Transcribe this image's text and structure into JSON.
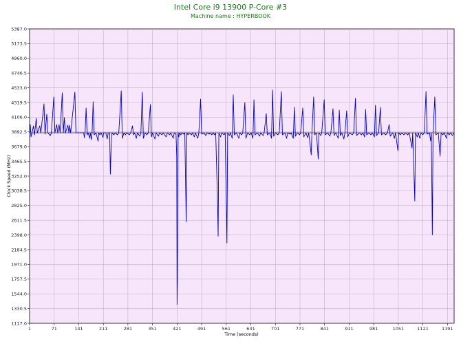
{
  "chart_data": {
    "type": "line",
    "title": "Intel Core i9 13900 P-Core #3",
    "subtitle": "Machine name : HYPERBOOK",
    "xlabel": "Time (seconds)",
    "ylabel": "Clock Speed (MHz)",
    "xlim": [
      1,
      1210
    ],
    "ylim": [
      1117.0,
      5387.0
    ],
    "x_ticks": [
      1,
      71,
      141,
      211,
      281,
      351,
      421,
      491,
      561,
      631,
      701,
      771,
      841,
      911,
      981,
      1051,
      1121,
      1191
    ],
    "y_ticks": [
      "1117.0",
      "1330.5",
      "1544.0",
      "1757.5",
      "1971.0",
      "2184.5",
      "2398.0",
      "2611.5",
      "2825.0",
      "3038.5",
      "3252.0",
      "3465.5",
      "3679.0",
      "3892.5",
      "4106.0",
      "4319.5",
      "4533.0",
      "4746.5",
      "4960.0",
      "5173.5",
      "5387.0"
    ],
    "grid": true,
    "legend": "none",
    "colors": {
      "line": "#0000cc",
      "plot_bg": "#f7e6fb",
      "grid": "#b9a6bf",
      "title": "#1a7a1a"
    },
    "series": [
      {
        "baseline": 3880,
        "points": [
          [
            1,
            3880
          ],
          [
            3,
            4000
          ],
          [
            5,
            3820
          ],
          [
            8,
            3880
          ],
          [
            12,
            3980
          ],
          [
            15,
            3850
          ],
          [
            20,
            4090
          ],
          [
            23,
            3880
          ],
          [
            30,
            3980
          ],
          [
            33,
            3880
          ],
          [
            42,
            4300
          ],
          [
            45,
            3860
          ],
          [
            50,
            4150
          ],
          [
            53,
            3880
          ],
          [
            60,
            3840
          ],
          [
            63,
            3880
          ],
          [
            70,
            4400
          ],
          [
            73,
            3880
          ],
          [
            78,
            4000
          ],
          [
            81,
            3880
          ],
          [
            85,
            4000
          ],
          [
            88,
            3880
          ],
          [
            94,
            4460
          ],
          [
            97,
            3880
          ],
          [
            100,
            4100
          ],
          [
            103,
            3880
          ],
          [
            110,
            3990
          ],
          [
            113,
            3880
          ],
          [
            115,
            3990
          ],
          [
            118,
            3880
          ],
          [
            130,
            4470
          ],
          [
            133,
            3880
          ],
          [
            141,
            3880
          ],
          [
            155,
            3880
          ],
          [
            157,
            3810
          ],
          [
            159,
            3880
          ],
          [
            162,
            4240
          ],
          [
            165,
            3850
          ],
          [
            168,
            3880
          ],
          [
            172,
            3800
          ],
          [
            174,
            3880
          ],
          [
            177,
            3780
          ],
          [
            179,
            3880
          ],
          [
            182,
            4330
          ],
          [
            185,
            3850
          ],
          [
            190,
            3880
          ],
          [
            196,
            3760
          ],
          [
            198,
            3880
          ],
          [
            201,
            3850
          ],
          [
            205,
            3880
          ],
          [
            210,
            3810
          ],
          [
            212,
            3880
          ],
          [
            215,
            3880
          ],
          [
            218,
            3880
          ],
          [
            222,
            3790
          ],
          [
            225,
            3880
          ],
          [
            229,
            3880
          ],
          [
            231,
            3280
          ],
          [
            234,
            3800
          ],
          [
            236,
            3880
          ],
          [
            241,
            3850
          ],
          [
            245,
            3880
          ],
          [
            251,
            3850
          ],
          [
            255,
            3880
          ],
          [
            262,
            4490
          ],
          [
            265,
            3800
          ],
          [
            270,
            3880
          ],
          [
            274,
            3850
          ],
          [
            278,
            3880
          ],
          [
            285,
            3850
          ],
          [
            289,
            3880
          ],
          [
            294,
            3980
          ],
          [
            297,
            3850
          ],
          [
            300,
            3880
          ],
          [
            305,
            3800
          ],
          [
            308,
            3880
          ],
          [
            315,
            3830
          ],
          [
            318,
            3880
          ],
          [
            322,
            4470
          ],
          [
            325,
            3800
          ],
          [
            330,
            3880
          ],
          [
            335,
            3850
          ],
          [
            339,
            3880
          ],
          [
            345,
            4290
          ],
          [
            348,
            3820
          ],
          [
            351,
            3880
          ],
          [
            358,
            3790
          ],
          [
            361,
            3880
          ],
          [
            368,
            3830
          ],
          [
            371,
            3880
          ],
          [
            378,
            3850
          ],
          [
            381,
            3880
          ],
          [
            390,
            3820
          ],
          [
            393,
            3880
          ],
          [
            400,
            3850
          ],
          [
            403,
            3880
          ],
          [
            410,
            3800
          ],
          [
            413,
            3880
          ],
          [
            418,
            3860
          ],
          [
            420,
            3540
          ],
          [
            421,
            1390
          ],
          [
            422,
            1730
          ],
          [
            424,
            3880
          ],
          [
            426,
            3820
          ],
          [
            428,
            3880
          ],
          [
            432,
            3850
          ],
          [
            435,
            3880
          ],
          [
            440,
            3860
          ],
          [
            443,
            3880
          ],
          [
            447,
            2590
          ],
          [
            449,
            3880
          ],
          [
            452,
            3850
          ],
          [
            455,
            3880
          ],
          [
            462,
            3850
          ],
          [
            465,
            3880
          ],
          [
            470,
            3820
          ],
          [
            473,
            3880
          ],
          [
            480,
            3800
          ],
          [
            483,
            3880
          ],
          [
            488,
            4370
          ],
          [
            491,
            3860
          ],
          [
            497,
            3880
          ],
          [
            503,
            3840
          ],
          [
            506,
            3880
          ],
          [
            512,
            3860
          ],
          [
            515,
            3880
          ],
          [
            520,
            3850
          ],
          [
            523,
            3880
          ],
          [
            528,
            3850
          ],
          [
            531,
            3880
          ],
          [
            536,
            2930
          ],
          [
            538,
            2380
          ],
          [
            540,
            3880
          ],
          [
            545,
            3820
          ],
          [
            548,
            3880
          ],
          [
            555,
            3850
          ],
          [
            558,
            3880
          ],
          [
            563,
            2280
          ],
          [
            565,
            3880
          ],
          [
            570,
            3840
          ],
          [
            573,
            3880
          ],
          [
            578,
            3800
          ],
          [
            581,
            4430
          ],
          [
            584,
            3850
          ],
          [
            590,
            3880
          ],
          [
            597,
            3800
          ],
          [
            600,
            3880
          ],
          [
            605,
            3850
          ],
          [
            608,
            3880
          ],
          [
            614,
            4320
          ],
          [
            617,
            3800
          ],
          [
            622,
            3880
          ],
          [
            628,
            3850
          ],
          [
            632,
            3880
          ],
          [
            637,
            3800
          ],
          [
            640,
            4360
          ],
          [
            643,
            3850
          ],
          [
            650,
            3880
          ],
          [
            656,
            3830
          ],
          [
            659,
            3880
          ],
          [
            666,
            3840
          ],
          [
            669,
            3880
          ],
          [
            675,
            4160
          ],
          [
            678,
            3850
          ],
          [
            685,
            3880
          ],
          [
            690,
            3800
          ],
          [
            693,
            4500
          ],
          [
            696,
            3830
          ],
          [
            702,
            3880
          ],
          [
            708,
            3850
          ],
          [
            712,
            3880
          ],
          [
            718,
            4480
          ],
          [
            721,
            3850
          ],
          [
            728,
            3880
          ],
          [
            733,
            3800
          ],
          [
            736,
            3880
          ],
          [
            743,
            3860
          ],
          [
            746,
            3880
          ],
          [
            752,
            3800
          ],
          [
            755,
            4250
          ],
          [
            758,
            3830
          ],
          [
            764,
            3880
          ],
          [
            770,
            3850
          ],
          [
            773,
            3880
          ],
          [
            779,
            4240
          ],
          [
            782,
            3820
          ],
          [
            788,
            3880
          ],
          [
            793,
            3810
          ],
          [
            796,
            3880
          ],
          [
            803,
            3560
          ],
          [
            805,
            3880
          ],
          [
            810,
            4400
          ],
          [
            813,
            3850
          ],
          [
            818,
            3880
          ],
          [
            823,
            3500
          ],
          [
            825,
            3880
          ],
          [
            830,
            3840
          ],
          [
            833,
            3880
          ],
          [
            840,
            4360
          ],
          [
            843,
            3850
          ],
          [
            850,
            3880
          ],
          [
            856,
            3830
          ],
          [
            859,
            3880
          ],
          [
            865,
            4230
          ],
          [
            868,
            3840
          ],
          [
            873,
            3880
          ],
          [
            880,
            3800
          ],
          [
            883,
            4210
          ],
          [
            886,
            3840
          ],
          [
            890,
            3880
          ],
          [
            896,
            3790
          ],
          [
            899,
            3880
          ],
          [
            904,
            4200
          ],
          [
            907,
            3820
          ],
          [
            912,
            3880
          ],
          [
            920,
            3850
          ],
          [
            924,
            3880
          ],
          [
            929,
            4380
          ],
          [
            932,
            3840
          ],
          [
            940,
            3880
          ],
          [
            946,
            3850
          ],
          [
            950,
            3880
          ],
          [
            955,
            3820
          ],
          [
            958,
            4220
          ],
          [
            961,
            3850
          ],
          [
            967,
            3880
          ],
          [
            973,
            3850
          ],
          [
            977,
            3880
          ],
          [
            983,
            3820
          ],
          [
            986,
            4280
          ],
          [
            989,
            3840
          ],
          [
            995,
            3880
          ],
          [
            1000,
            4250
          ],
          [
            1003,
            3850
          ],
          [
            1010,
            3880
          ],
          [
            1015,
            3850
          ],
          [
            1020,
            3880
          ],
          [
            1025,
            4000
          ],
          [
            1028,
            3830
          ],
          [
            1035,
            3880
          ],
          [
            1040,
            3800
          ],
          [
            1043,
            3880
          ],
          [
            1050,
            3620
          ],
          [
            1052,
            3880
          ],
          [
            1057,
            3850
          ],
          [
            1061,
            3880
          ],
          [
            1067,
            3850
          ],
          [
            1071,
            3880
          ],
          [
            1078,
            3850
          ],
          [
            1082,
            3880
          ],
          [
            1090,
            3660
          ],
          [
            1092,
            3880
          ],
          [
            1098,
            2890
          ],
          [
            1100,
            3880
          ],
          [
            1105,
            3820
          ],
          [
            1108,
            3880
          ],
          [
            1112,
            3800
          ],
          [
            1116,
            3880
          ],
          [
            1121,
            3850
          ],
          [
            1125,
            3880
          ],
          [
            1130,
            4480
          ],
          [
            1133,
            3860
          ],
          [
            1140,
            3880
          ],
          [
            1143,
            3760
          ],
          [
            1145,
            3880
          ],
          [
            1148,
            2400
          ],
          [
            1150,
            3880
          ],
          [
            1155,
            4400
          ],
          [
            1158,
            3850
          ],
          [
            1165,
            3880
          ],
          [
            1170,
            3540
          ],
          [
            1173,
            3880
          ],
          [
            1178,
            3850
          ],
          [
            1182,
            3880
          ],
          [
            1188,
            3800
          ],
          [
            1191,
            3880
          ],
          [
            1196,
            3850
          ],
          [
            1200,
            3880
          ],
          [
            1205,
            3840
          ],
          [
            1210,
            3880
          ]
        ]
      }
    ]
  }
}
